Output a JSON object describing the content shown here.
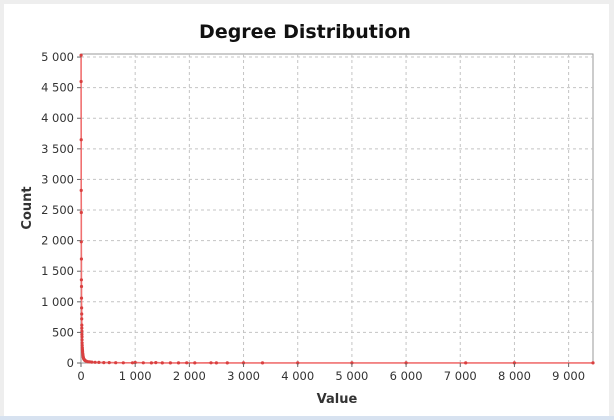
{
  "chart_data": {
    "type": "scatter",
    "title": "Degree Distribution",
    "xlabel": "Value",
    "ylabel": "Count",
    "xlim": [
      0,
      9450
    ],
    "ylim": [
      0,
      5050
    ],
    "x_ticks": [
      0,
      1000,
      2000,
      3000,
      4000,
      5000,
      6000,
      7000,
      8000,
      9000
    ],
    "x_tick_labels": [
      "0",
      "1 000",
      "2 000",
      "3 000",
      "4 000",
      "5 000",
      "6 000",
      "7 000",
      "8 000",
      "9 000"
    ],
    "y_ticks": [
      0,
      500,
      1000,
      1500,
      2000,
      2500,
      3000,
      3500,
      4000,
      4500,
      5000
    ],
    "y_tick_labels": [
      "0",
      "500",
      "1 000",
      "1 500",
      "2 000",
      "2 500",
      "3 000",
      "3 500",
      "4 000",
      "4 500",
      "5 000"
    ],
    "grid": true,
    "marker_color": "#d94040",
    "line_color": "#f07070",
    "x": [
      1,
      2,
      3,
      4,
      5,
      6,
      7,
      8,
      9,
      10,
      11,
      12,
      13,
      14,
      15,
      16,
      17,
      18,
      19,
      20,
      22,
      24,
      26,
      28,
      30,
      33,
      36,
      40,
      45,
      50,
      60,
      70,
      80,
      100,
      130,
      160,
      200,
      260,
      330,
      420,
      520,
      640,
      780,
      950,
      1000,
      1150,
      1300,
      1380,
      1500,
      1650,
      1800,
      1950,
      2100,
      2400,
      2500,
      2700,
      3000,
      3350,
      4000,
      5000,
      6000,
      7100,
      8000,
      9450
    ],
    "y": [
      5030,
      4600,
      3650,
      2820,
      2460,
      1980,
      1700,
      1360,
      1250,
      1060,
      900,
      800,
      720,
      620,
      570,
      520,
      470,
      430,
      380,
      330,
      290,
      250,
      220,
      200,
      180,
      150,
      125,
      100,
      85,
      70,
      55,
      45,
      38,
      30,
      22,
      18,
      14,
      11,
      9,
      7,
      6,
      5,
      4,
      3,
      8,
      3,
      2,
      6,
      2,
      2,
      1,
      3,
      1,
      3,
      1,
      1,
      1,
      1,
      1,
      1,
      1,
      1,
      1,
      1
    ]
  }
}
